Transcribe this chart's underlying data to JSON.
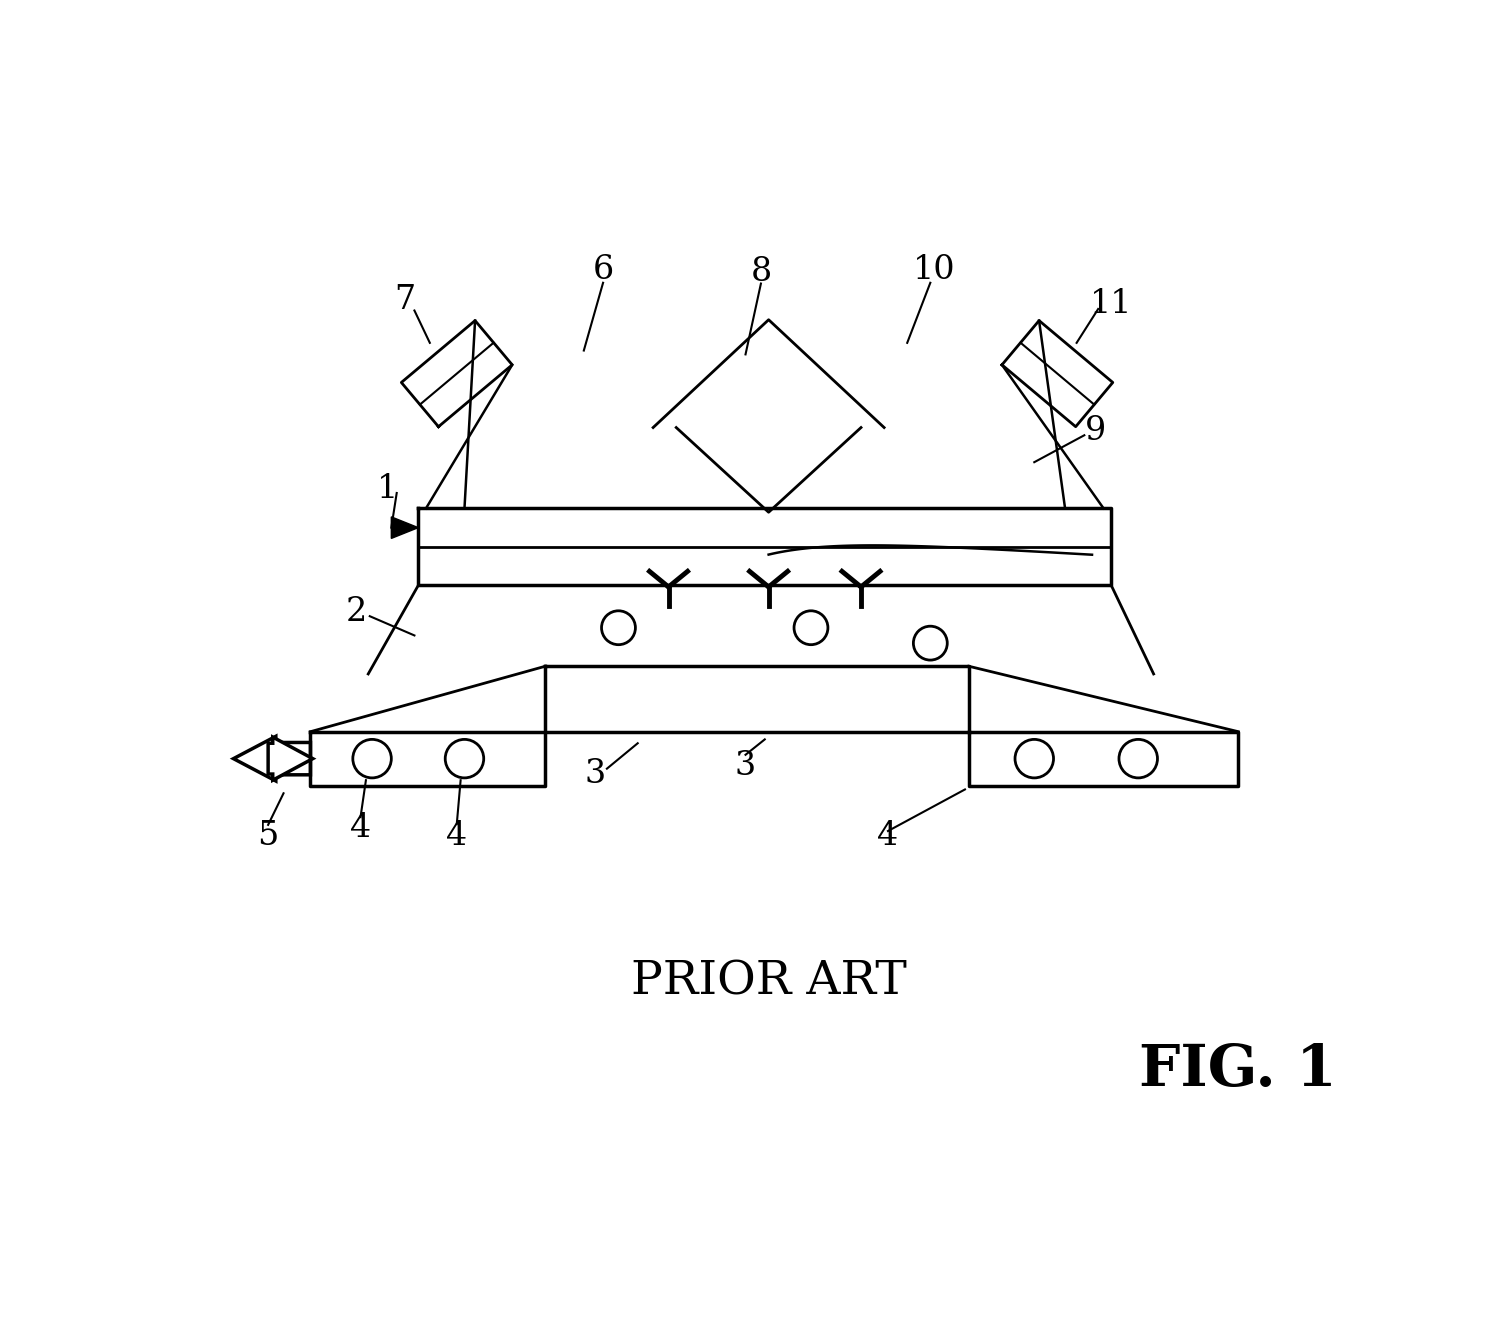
{
  "bg_color": "#ffffff",
  "line_color": "#000000",
  "title": "PRIOR ART",
  "fig_label": "FIG. 1",
  "figsize": [
    14.99,
    13.17
  ],
  "dpi": 100
}
